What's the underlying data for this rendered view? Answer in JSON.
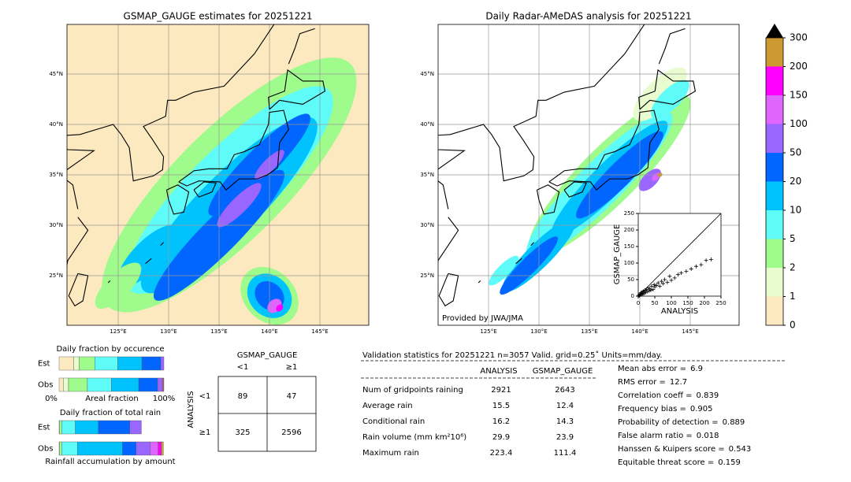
{
  "left_map": {
    "title": "GSMAP_GAUGE estimates for 20251221",
    "xticks": [
      {
        "value": 125,
        "label": "125°E"
      },
      {
        "value": 130,
        "label": "130°E"
      },
      {
        "value": 135,
        "label": "135°E"
      },
      {
        "value": 140,
        "label": "140°E"
      },
      {
        "value": 145,
        "label": "145°E"
      }
    ],
    "yticks": [
      {
        "value": 45,
        "label": "45°N"
      },
      {
        "value": 40,
        "label": "40°N"
      },
      {
        "value": 35,
        "label": "35°N"
      },
      {
        "value": 30,
        "label": "30°N"
      },
      {
        "value": 25,
        "label": "25°N"
      }
    ]
  },
  "right_map": {
    "title": "Daily Radar-AMeDAS analysis for 20251221",
    "credit": "Provided by JWA/JMA",
    "xticks": [
      {
        "value": 125,
        "label": "125°E"
      },
      {
        "value": 130,
        "label": "130°E"
      },
      {
        "value": 135,
        "label": "135°E"
      },
      {
        "value": 140,
        "label": "140°E"
      },
      {
        "value": 145,
        "label": "145°E"
      }
    ],
    "yticks": [
      {
        "value": 45,
        "label": "45°N"
      },
      {
        "value": 40,
        "label": "40°N"
      },
      {
        "value": 35,
        "label": "35°N"
      },
      {
        "value": 30,
        "label": "30°N"
      },
      {
        "value": 25,
        "label": "25°N"
      }
    ]
  },
  "chart_data": {
    "type": "scatter",
    "xlabel": "ANALYSIS",
    "ylabel": "GSMAP_GAUGE",
    "xlim": [
      0,
      250
    ],
    "ylim": [
      0,
      250
    ],
    "xticks": [
      0,
      50,
      100,
      150,
      200,
      250
    ],
    "yticks": [
      0,
      50,
      100,
      150,
      200,
      250
    ],
    "x": [
      2,
      4,
      5,
      7,
      8,
      10,
      12,
      14,
      15,
      18,
      20,
      22,
      25,
      28,
      30,
      33,
      35,
      38,
      40,
      45,
      48,
      50,
      55,
      60,
      65,
      70,
      75,
      80,
      88,
      95,
      100,
      110,
      120,
      130,
      145,
      160,
      175,
      190,
      205,
      220
    ],
    "y": [
      3,
      1,
      6,
      4,
      10,
      7,
      12,
      5,
      15,
      9,
      18,
      11,
      20,
      14,
      25,
      16,
      22,
      18,
      30,
      20,
      35,
      28,
      32,
      40,
      30,
      45,
      38,
      50,
      42,
      60,
      48,
      55,
      65,
      70,
      75,
      82,
      90,
      95,
      108,
      111
    ],
    "color": "#000000"
  },
  "colorbar": {
    "ticks": [
      0,
      1,
      2,
      5,
      10,
      20,
      50,
      100,
      150,
      200,
      300
    ],
    "colors": [
      "#fde9c0",
      "#e8fcd0",
      "#9efb8c",
      "#5ffbf9",
      "#00c3fe",
      "#0066ff",
      "#9966ff",
      "#de66fe",
      "#ff00ff",
      "#cc9933"
    ],
    "extend_color": "#000000"
  },
  "fraction_occurrence": {
    "title": "Daily fraction by occurence",
    "rows": [
      "Est",
      "Obs"
    ],
    "axis_labels": [
      "0%",
      "Areal fraction",
      "100%"
    ],
    "values": [
      [
        14,
        5,
        15,
        22,
        23,
        18,
        3
      ],
      [
        4,
        5,
        18,
        23,
        26,
        18,
        4,
        1,
        0.5,
        0.5
      ]
    ]
  },
  "fraction_total": {
    "title": "Daily fraction of total rain",
    "rows": [
      "Est",
      "Obs"
    ],
    "xlabel": "Rainfall accumulation by amount",
    "values": [
      [
        0,
        0.5,
        2,
        13,
        22,
        30,
        11
      ],
      [
        0,
        0.5,
        2,
        15,
        43,
        13,
        13.5,
        7.5,
        3,
        2
      ]
    ]
  },
  "contingency": {
    "title": "GSMAP_GAUGE",
    "col_labels": [
      "<1",
      "≥1"
    ],
    "row_title": "ANALYSIS",
    "row_labels": [
      "<1",
      "≥1"
    ],
    "cells": [
      [
        89,
        47
      ],
      [
        325,
        2596
      ]
    ]
  },
  "validation": {
    "header": "Validation statistics for 20251221  n=3057 Valid. grid=0.25˚ Units=mm/day.",
    "columns": [
      "ANALYSIS",
      "GSMAP_GAUGE"
    ],
    "rows": [
      {
        "label": "Num of gridpoints raining",
        "values": [
          2921,
          2643
        ]
      },
      {
        "label": "Average rain",
        "values": [
          15.5,
          12.4
        ]
      },
      {
        "label": "Conditional rain",
        "values": [
          16.2,
          14.3
        ]
      },
      {
        "label": "Rain volume (mm km²10⁶)",
        "values": [
          29.9,
          23.9
        ]
      },
      {
        "label": "Maximum rain",
        "values": [
          223.4,
          111.4
        ]
      }
    ],
    "scores": [
      {
        "label": "Mean abs error =",
        "value": 6.9
      },
      {
        "label": "RMS error =",
        "value": 12.7
      },
      {
        "label": "Correlation coeff =",
        "value": 0.839
      },
      {
        "label": "Frequency bias =",
        "value": 0.905
      },
      {
        "label": "Probability of detection =",
        "value": 0.889
      },
      {
        "label": "False alarm ratio =",
        "value": 0.018
      },
      {
        "label": "Hanssen & Kuipers score =",
        "value": 0.543
      },
      {
        "label": "Equitable threat score =",
        "value": 0.159
      }
    ]
  }
}
